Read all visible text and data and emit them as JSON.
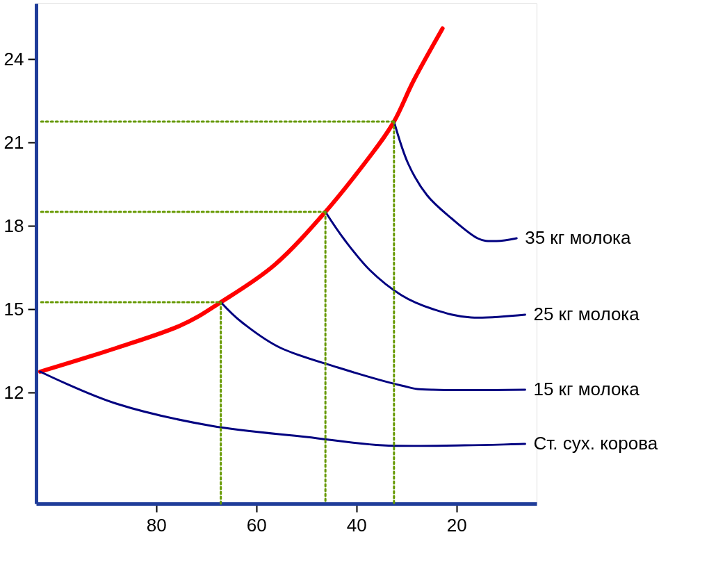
{
  "chart_data": {
    "type": "line",
    "xlim": [
      104,
      4
    ],
    "ylim": [
      8,
      26
    ],
    "xticks": [
      80,
      60,
      40,
      20
    ],
    "yticks": [
      12,
      15,
      18,
      21,
      24
    ],
    "grid": false,
    "marker": "none",
    "series": [
      {
        "color": "#ff0000",
        "x": [
          103.2,
          88.0,
          75.3,
          67.1,
          56.3,
          46.2,
          37.3,
          32.5,
          28.5,
          22.8
        ],
        "values": [
          12.75,
          13.6,
          14.4,
          15.25,
          16.6,
          18.5,
          20.5,
          21.75,
          23.25,
          25.1
        ]
      },
      {
        "name": "Ст. сух. корова",
        "color": "#000080",
        "x": [
          103.2,
          88.0,
          69.0,
          50.0,
          34.8,
          18.4,
          6.3
        ],
        "values": [
          12.75,
          11.6,
          10.8,
          10.4,
          10.1,
          10.1,
          10.15
        ]
      },
      {
        "name": "15 кг молока",
        "color": "#000080",
        "x": [
          67.1,
          62.7,
          55.1,
          43.7,
          31.0,
          24.7,
          6.3
        ],
        "values": [
          15.25,
          14.5,
          13.6,
          12.9,
          12.25,
          12.1,
          12.1
        ]
      },
      {
        "name": "25 кг молока",
        "color": "#000080",
        "x": [
          46.2,
          42.4,
          37.3,
          31.0,
          24.7,
          17.1,
          6.3
        ],
        "values": [
          18.5,
          17.5,
          16.4,
          15.5,
          15.0,
          14.7,
          14.8
        ]
      },
      {
        "name": "35 кг молока",
        "color": "#000080",
        "x": [
          32.5,
          29.7,
          25.9,
          20.9,
          15.8,
          12.0,
          8.0
        ],
        "values": [
          21.75,
          20.25,
          19.1,
          18.25,
          17.55,
          17.45,
          17.55
        ]
      },
      {
        "color": "#669900",
        "line_style": "dotted",
        "x": [
          103,
          67.1
        ],
        "values": [
          15.25,
          15.25
        ]
      },
      {
        "color": "#669900",
        "line_style": "dotted",
        "x": [
          103,
          46.2
        ],
        "values": [
          18.5,
          18.5
        ]
      },
      {
        "color": "#669900",
        "line_style": "dotted",
        "x": [
          103,
          32.5
        ],
        "values": [
          21.75,
          21.75
        ]
      },
      {
        "color": "#669900",
        "line_style": "dotted",
        "x": [
          67.1,
          67.1
        ],
        "values": [
          15.25,
          8
        ]
      },
      {
        "color": "#669900",
        "line_style": "dotted",
        "x": [
          46.2,
          46.2
        ],
        "values": [
          18.5,
          8
        ]
      },
      {
        "color": "#669900",
        "line_style": "dotted",
        "x": [
          32.5,
          32.5
        ],
        "values": [
          21.75,
          8
        ]
      }
    ]
  }
}
